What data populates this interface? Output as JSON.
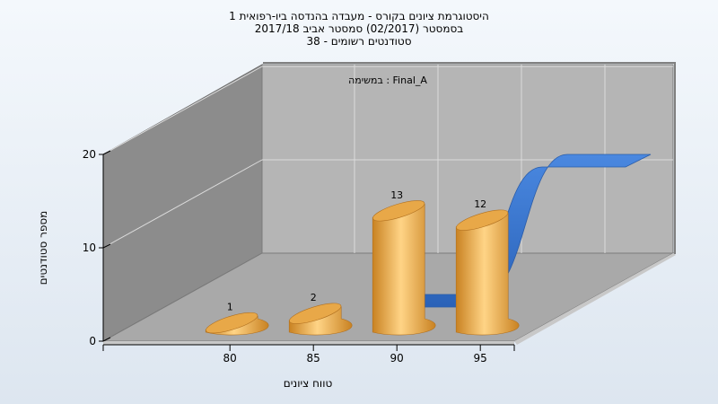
{
  "chart_data": {
    "type": "bar",
    "title_lines": [
      "היסטוגרמת ציונים בקורס - מעבדה בהנדסה ביו-רפואית 1",
      "בסמסטר  (02/2017)  סמסטר אביב 2017/18",
      "סטודנטים רשומים - 38"
    ],
    "xlabel": "טווח ציונים",
    "ylabel": "מספר סטודנטים",
    "y_ticks": [
      "0",
      "10",
      "20"
    ],
    "x_ticks": [
      "80",
      "85",
      "90",
      "95"
    ],
    "ylim": [
      0,
      20
    ],
    "legend_text": "במשימה : Final_A",
    "series": [
      {
        "kind": "bars",
        "x": [
          80,
          85,
          90,
          95
        ],
        "values": [
          1,
          2,
          13,
          12
        ],
        "data_labels": [
          "1",
          "2",
          "13",
          "12"
        ],
        "color": "#e3a13e"
      },
      {
        "kind": "ribbon",
        "x": [
          85,
          90,
          95,
          100
        ],
        "values": [
          0,
          0,
          15,
          15
        ],
        "color": "#3a77d0"
      }
    ],
    "colors": {
      "back_wall": "#b5b5b5",
      "left_wall": "#8c8c8c",
      "floor": "#a9a9a9",
      "bar": "#e3a13e",
      "bar_highlight": "#ffd486",
      "ribbon": "#3a77d0"
    }
  }
}
